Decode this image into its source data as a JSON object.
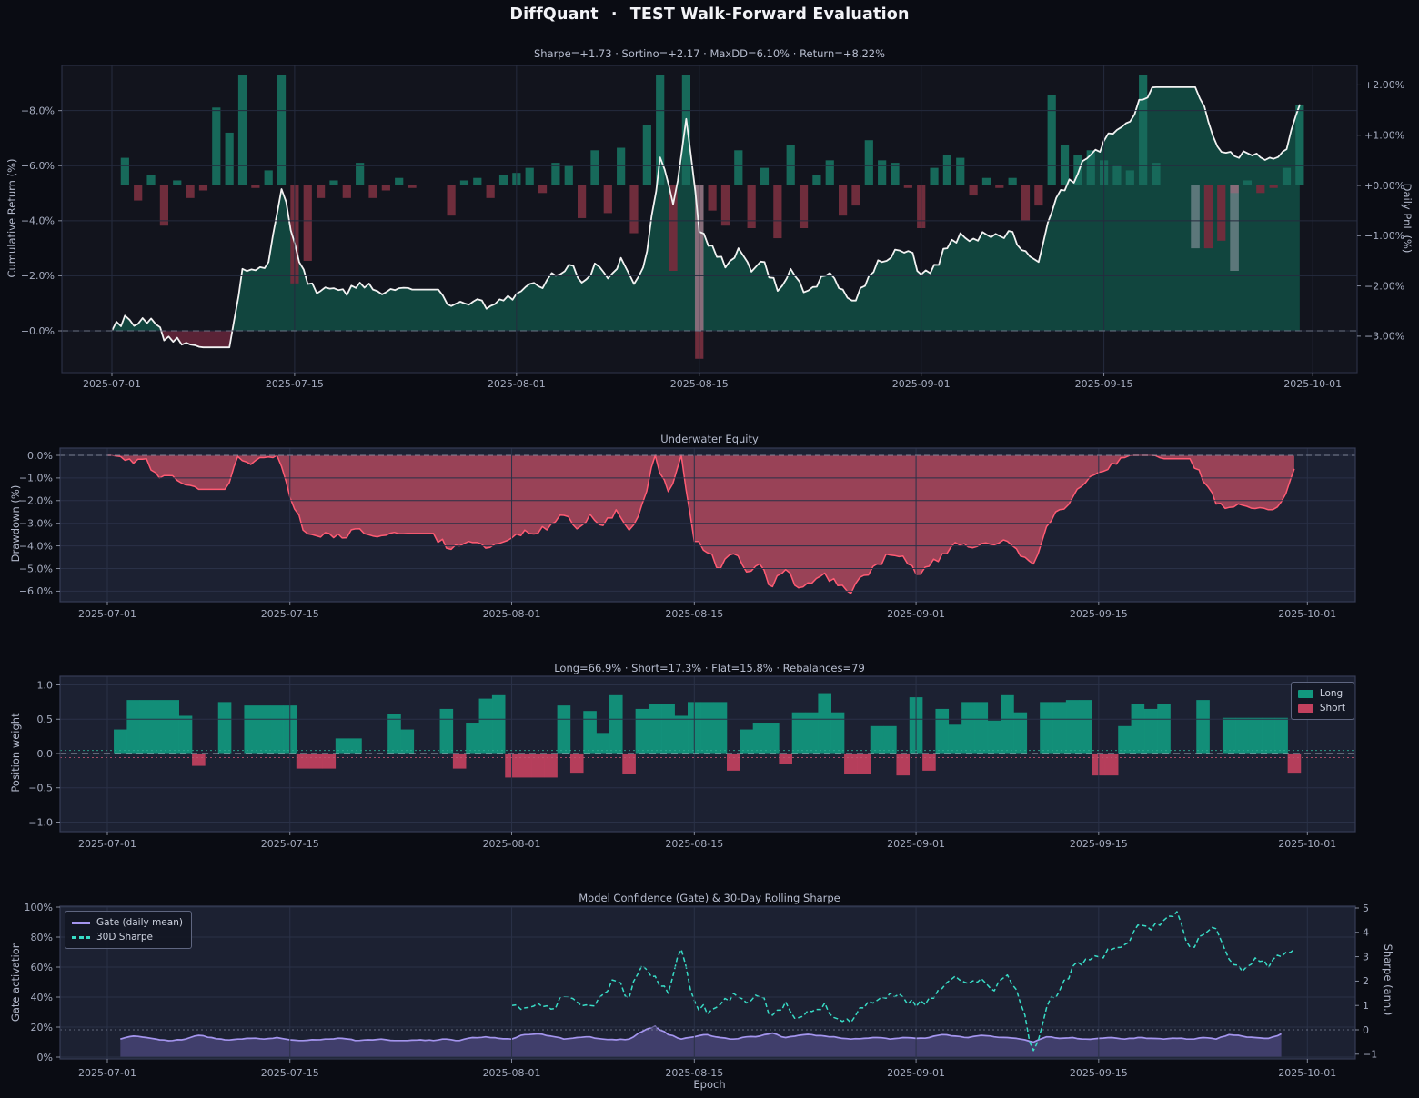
{
  "header": {
    "brand": "DiffQuant",
    "separator": "·",
    "title": "TEST Walk-Forward Evaluation"
  },
  "dates": {
    "tick_labels": [
      "2025-07-01",
      "2025-07-15",
      "2025-08-01",
      "2025-08-15",
      "2025-09-01",
      "2025-09-15",
      "2025-10-01"
    ],
    "tick_days": [
      0,
      14,
      31,
      45,
      62,
      76,
      92
    ],
    "n_days": 92,
    "start": "2025-07-01"
  },
  "colors": {
    "background": "#0a0c13",
    "panel_dark": "#12141d",
    "panel_navy": "#1c2132",
    "grid_dark": "#252b3e",
    "grid_navy": "#2a3147",
    "border_dark": "#2b3044",
    "border_navy": "#363c55",
    "text_muted": "#a6adc0",
    "title_text": "#f2f3f7",
    "subtitle_text": "#b7bdcf",
    "equity_line": "#f2f2f2",
    "equity_fill_pos": "#108a6e",
    "equity_fill_neg": "#96304a",
    "pnl_pos": "#17695a",
    "pnl_neg": "#6f2d3c",
    "pnl_gray": "#9aa0ab",
    "dd_line": "#ff5b73",
    "dd_fill": "#ec5870",
    "long": "#11987e",
    "short": "#c2415e",
    "gate_line": "#a495ee",
    "gate_fill": "#7c6ec8",
    "sharpe_line": "#38dcc6",
    "zero_dash": "#9098ac",
    "thresh_long": "#2fae93",
    "thresh_short": "#c05570"
  },
  "chart_data": [
    {
      "type": "line+bar",
      "title": "Sharpe=+1.73  ·  Sortino=+2.17  ·  MaxDD=6.10%  ·  Return=+8.22%",
      "metrics": {
        "sharpe": "+1.73",
        "sortino": "+2.17",
        "max_drawdown": "6.10%",
        "return": "+8.22%"
      },
      "ylabel_left": "Cumulative Return (%)",
      "ylabel_right": "Daily PnL (%)",
      "y_left": {
        "labels": [
          "+8.0%",
          "+6.0%",
          "+4.0%",
          "+2.0%",
          "+0.0%"
        ],
        "values": [
          8,
          6,
          4,
          2,
          0
        ]
      },
      "y_right": {
        "labels": [
          "+2.00%",
          "+1.00%",
          "+0.00%",
          "−1.00%",
          "−2.00%",
          "−3.00%"
        ],
        "values": [
          2,
          1,
          0,
          -1,
          -2,
          -3
        ]
      },
      "ylim_left": [
        -1.6,
        9.6
      ],
      "ylim_right": [
        -3.7,
        2.4
      ],
      "equity": [
        0,
        0.55,
        0.25,
        0.45,
        -0.35,
        -0.25,
        -0.5,
        -0.6,
        -0.6,
        -0.6,
        2.25,
        2.2,
        2.5,
        5.15,
        3.2,
        1.7,
        1.45,
        1.55,
        1.3,
        1.75,
        1.5,
        1.4,
        1.55,
        1.5,
        1.5,
        1.5,
        0.9,
        1.0,
        1.15,
        0.9,
        1.1,
        1.35,
        1.7,
        1.55,
        2.0,
        2.4,
        1.75,
        2.45,
        1.9,
        2.65,
        1.7,
        2.9,
        6.3,
        4.6,
        7.7,
        3.6,
        3.1,
        2.3,
        3.0,
        2.15,
        2.5,
        1.45,
        2.25,
        1.4,
        1.6,
        2.1,
        1.5,
        1.1,
        2.0,
        2.5,
        2.95,
        2.9,
        2.05,
        2.4,
        3.0,
        3.55,
        3.35,
        3.5,
        3.45,
        3.6,
        2.9,
        2.5,
        4.3,
        5.1,
        5.7,
        6.4,
        6.9,
        7.3,
        7.6,
        8.4,
        8.85,
        8.85,
        8.85,
        8.85,
        7.6,
        6.5,
        6.35,
        6.45,
        6.3,
        6.25,
        6.6,
        8.2
      ],
      "pnl": [
        null,
        0.55,
        -0.3,
        0.2,
        -0.8,
        0.1,
        -0.25,
        -0.1,
        1.55,
        1.05,
        2.2,
        -0.05,
        0.3,
        2.2,
        -1.95,
        -1.5,
        -0.25,
        0.1,
        -0.25,
        0.45,
        -0.25,
        -0.1,
        0.15,
        -0.05,
        0,
        0,
        -0.6,
        0.1,
        0.15,
        -0.25,
        0.2,
        0.25,
        0.35,
        -0.15,
        0.45,
        0.4,
        -0.65,
        0.7,
        -0.55,
        0.75,
        -0.95,
        1.2,
        2.2,
        -1.7,
        2.2,
        -3.45,
        -0.5,
        -0.8,
        0.7,
        -0.85,
        0.35,
        -1.05,
        0.8,
        -0.85,
        0.2,
        0.5,
        -0.6,
        -0.4,
        0.9,
        0.5,
        0.45,
        -0.05,
        -0.85,
        0.35,
        0.6,
        0.55,
        -0.2,
        0.15,
        -0.05,
        0.15,
        -0.7,
        -0.4,
        1.8,
        0.8,
        0.6,
        0.7,
        0.5,
        0.4,
        0.3,
        2.2,
        0.45,
        0,
        0,
        0,
        -1.25,
        -1.1,
        -0.15,
        0.1,
        -0.15,
        -0.05,
        0.35,
        1.6
      ],
      "gray_bars": [
        {
          "i": 45,
          "v": -2.9
        },
        {
          "i": 83,
          "v": -1.25
        },
        {
          "i": 86,
          "v": -1.7
        }
      ]
    },
    {
      "type": "area",
      "title": "Underwater Equity",
      "ylabel": "Drawdown (%)",
      "y_ticks": {
        "labels": [
          "0.0%",
          "−1.0%",
          "−2.0%",
          "−3.0%",
          "−4.0%",
          "−5.0%",
          "−6.0%"
        ],
        "values": [
          0,
          -1,
          -2,
          -3,
          -4,
          -5,
          -6
        ]
      },
      "ylim": [
        -6.5,
        0.3
      ],
      "drawdown": [
        0,
        -0.05,
        -0.35,
        -0.15,
        -1.0,
        -0.9,
        -1.3,
        -1.5,
        -1.5,
        -1.5,
        -0.05,
        -0.4,
        -0.1,
        0,
        -1.85,
        -3.3,
        -3.55,
        -3.45,
        -3.65,
        -3.25,
        -3.5,
        -3.55,
        -3.4,
        -3.45,
        -3.45,
        -3.45,
        -4.1,
        -4.0,
        -3.85,
        -4.1,
        -3.9,
        -3.65,
        -3.3,
        -3.45,
        -3.05,
        -2.65,
        -3.25,
        -2.6,
        -3.1,
        -2.4,
        -3.3,
        -2.15,
        0,
        -1.6,
        0,
        -3.8,
        -4.3,
        -5.0,
        -4.35,
        -5.15,
        -4.8,
        -5.8,
        -5.05,
        -5.85,
        -5.65,
        -5.2,
        -5.75,
        -6.1,
        -5.3,
        -4.8,
        -4.4,
        -4.45,
        -5.25,
        -4.9,
        -4.35,
        -3.85,
        -4.05,
        -3.9,
        -3.95,
        -3.8,
        -4.45,
        -4.8,
        -3.15,
        -2.4,
        -1.85,
        -1.2,
        -0.75,
        -0.35,
        -0.1,
        0,
        0,
        -0.15,
        -0.15,
        -0.15,
        -1.15,
        -2.15,
        -2.3,
        -2.2,
        -2.35,
        -2.4,
        -2.05,
        -0.6
      ]
    },
    {
      "type": "bar",
      "title": "Long=66.9%  ·  Short=17.3%  ·  Flat=15.8%  ·  Rebalances=79",
      "metrics": {
        "long": "66.9%",
        "short": "17.3%",
        "flat": "15.8%",
        "rebalances": "79"
      },
      "ylabel": "Position weight",
      "y_ticks": {
        "labels": [
          "1.0",
          "0.5",
          "0.0",
          "−0.5",
          "−1.0"
        ],
        "values": [
          1,
          0.5,
          0,
          -0.5,
          -1
        ]
      },
      "ylim": [
        -1.1,
        1.1
      ],
      "legend": [
        "Long",
        "Short"
      ],
      "threshold_long": 0.045,
      "threshold_short": -0.06,
      "weights": [
        0,
        0.35,
        0.78,
        0.78,
        0.78,
        0.78,
        0.55,
        -0.18,
        0,
        0.75,
        0,
        0.7,
        0.7,
        0.7,
        0.7,
        -0.22,
        -0.22,
        -0.22,
        0.22,
        0.22,
        0,
        0,
        0.57,
        0.35,
        0,
        0,
        0.65,
        -0.22,
        0.45,
        0.8,
        0.85,
        -0.35,
        -0.35,
        -0.35,
        -0.35,
        0.7,
        -0.28,
        0.62,
        0.3,
        0.85,
        -0.3,
        0.65,
        0.72,
        0.72,
        0.55,
        0.75,
        0.75,
        0.75,
        -0.25,
        0.35,
        0.45,
        0.45,
        -0.15,
        0.6,
        0.6,
        0.88,
        0.6,
        -0.3,
        -0.3,
        0.4,
        0.4,
        -0.32,
        0.82,
        -0.25,
        0.65,
        0.42,
        0.75,
        0.75,
        0.48,
        0.85,
        0.6,
        0,
        0.75,
        0.75,
        0.78,
        0.78,
        -0.32,
        -0.32,
        0.4,
        0.72,
        0.65,
        0.72,
        0,
        0,
        0.78,
        0,
        0.52,
        0.52,
        0.52,
        0.52,
        0.52,
        -0.28
      ]
    },
    {
      "type": "line",
      "title": "Model Confidence (Gate) & 30-Day Rolling Sharpe",
      "ylabel_left": "Gate activation",
      "ylabel_right": "Sharpe (ann.)",
      "xlabel": "Epoch",
      "legend": [
        "Gate (daily mean)",
        "30D Sharpe"
      ],
      "y_left": {
        "labels": [
          "100%",
          "80%",
          "60%",
          "40%",
          "20%",
          "0%"
        ],
        "values": [
          1,
          0.8,
          0.6,
          0.4,
          0.2,
          0
        ]
      },
      "y_right": {
        "labels": [
          "5",
          "4",
          "3",
          "2",
          "1",
          "0",
          "−1"
        ],
        "values": [
          5,
          4,
          3,
          2,
          1,
          0,
          -1
        ]
      },
      "gate": [
        null,
        0.12,
        0.14,
        0.13,
        0.115,
        0.11,
        0.12,
        0.145,
        0.13,
        0.115,
        0.12,
        0.125,
        0.12,
        0.13,
        0.115,
        0.11,
        0.115,
        0.12,
        0.125,
        0.11,
        0.115,
        0.12,
        0.11,
        0.11,
        0.115,
        0.11,
        0.12,
        0.11,
        0.13,
        0.135,
        0.125,
        0.12,
        0.15,
        0.155,
        0.14,
        0.12,
        0.13,
        0.135,
        0.12,
        0.115,
        0.12,
        0.17,
        0.205,
        0.15,
        0.12,
        0.135,
        0.15,
        0.13,
        0.12,
        0.135,
        0.14,
        0.16,
        0.13,
        0.145,
        0.15,
        0.14,
        0.13,
        0.12,
        0.125,
        0.13,
        0.12,
        0.13,
        0.125,
        0.13,
        0.15,
        0.14,
        0.13,
        0.145,
        0.135,
        0.13,
        0.12,
        0.1,
        0.135,
        0.125,
        0.13,
        0.12,
        0.125,
        0.13,
        0.12,
        0.13,
        0.125,
        0.12,
        0.125,
        0.12,
        0.13,
        0.12,
        0.15,
        0.14,
        0.13,
        0.125,
        0.155,
        null
      ],
      "sharpe30d": [
        null,
        null,
        null,
        null,
        null,
        null,
        null,
        null,
        null,
        null,
        null,
        null,
        null,
        null,
        null,
        null,
        null,
        null,
        null,
        null,
        null,
        null,
        null,
        null,
        null,
        null,
        null,
        null,
        null,
        null,
        null,
        1.0,
        0.9,
        1.1,
        0.85,
        1.35,
        1.15,
        1.0,
        1.45,
        2.0,
        1.3,
        2.65,
        2.2,
        1.5,
        3.3,
        1.2,
        0.65,
        1.05,
        1.5,
        1.1,
        1.35,
        0.6,
        1.15,
        0.5,
        0.75,
        1.1,
        0.45,
        0.3,
        0.9,
        1.2,
        1.5,
        1.35,
        0.95,
        1.3,
        1.7,
        2.2,
        1.9,
        2.1,
        1.6,
        2.25,
        1.1,
        -0.85,
        0.9,
        1.6,
        2.6,
        2.9,
        3.0,
        3.3,
        3.5,
        4.3,
        4.1,
        4.5,
        4.85,
        3.4,
        3.9,
        4.15,
        2.9,
        2.4,
        2.95,
        2.55,
        3.0,
        3.3
      ]
    }
  ]
}
